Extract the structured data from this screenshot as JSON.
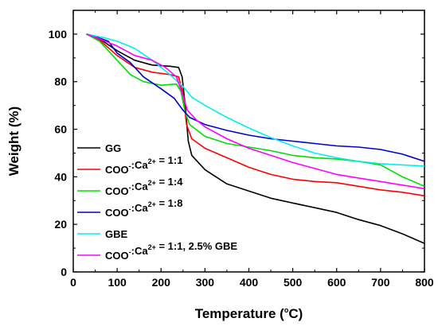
{
  "chart_data": {
    "type": "line",
    "title": "",
    "xlabel": {
      "prefix": "Temperature (",
      "sup": "o",
      "suffix": "C)"
    },
    "ylabel": "Weight (%)",
    "xlim": [
      0,
      800
    ],
    "ylim": [
      0,
      110
    ],
    "xticks": [
      0,
      100,
      200,
      300,
      400,
      500,
      600,
      700,
      800
    ],
    "yticks": [
      0,
      20,
      40,
      60,
      80,
      100
    ],
    "grid": false,
    "legend_position": "left",
    "series": [
      {
        "name": {
          "parts": [
            {
              "t": "GG"
            }
          ]
        },
        "color": "#000000",
        "points": [
          [
            30,
            100
          ],
          [
            60,
            98
          ],
          [
            100,
            93
          ],
          [
            140,
            89
          ],
          [
            180,
            87
          ],
          [
            220,
            86.5
          ],
          [
            240,
            86
          ],
          [
            248,
            82
          ],
          [
            255,
            70
          ],
          [
            262,
            55
          ],
          [
            270,
            49
          ],
          [
            300,
            43
          ],
          [
            350,
            37
          ],
          [
            400,
            34
          ],
          [
            450,
            31
          ],
          [
            500,
            29
          ],
          [
            550,
            27
          ],
          [
            600,
            25
          ],
          [
            650,
            22
          ],
          [
            700,
            19.5
          ],
          [
            750,
            16
          ],
          [
            800,
            12
          ]
        ]
      },
      {
        "name": {
          "parts": [
            {
              "t": "COO"
            },
            {
              "t": "-",
              "sup": true
            },
            {
              "t": ":Ca"
            },
            {
              "t": "2+",
              "sup": true
            },
            {
              "t": " = 1:1"
            }
          ]
        },
        "color": "#ff0000",
        "points": [
          [
            30,
            100
          ],
          [
            60,
            97.5
          ],
          [
            100,
            91
          ],
          [
            140,
            86
          ],
          [
            180,
            84
          ],
          [
            220,
            83
          ],
          [
            240,
            82
          ],
          [
            250,
            75
          ],
          [
            258,
            62
          ],
          [
            270,
            56
          ],
          [
            300,
            52
          ],
          [
            350,
            48
          ],
          [
            400,
            44
          ],
          [
            450,
            41
          ],
          [
            500,
            39
          ],
          [
            550,
            38
          ],
          [
            600,
            37.5
          ],
          [
            650,
            36
          ],
          [
            700,
            34.5
          ],
          [
            750,
            33.5
          ],
          [
            800,
            32
          ]
        ]
      },
      {
        "name": {
          "parts": [
            {
              "t": "COO"
            },
            {
              "t": "-",
              "sup": true
            },
            {
              "t": ":Ca"
            },
            {
              "t": "2+",
              "sup": true
            },
            {
              "t": " = 1:4"
            }
          ]
        },
        "color": "#00dd00",
        "points": [
          [
            30,
            100
          ],
          [
            60,
            97
          ],
          [
            100,
            89
          ],
          [
            130,
            83
          ],
          [
            160,
            80
          ],
          [
            200,
            78.5
          ],
          [
            235,
            79
          ],
          [
            245,
            76
          ],
          [
            255,
            67
          ],
          [
            265,
            62
          ],
          [
            300,
            57
          ],
          [
            350,
            54
          ],
          [
            400,
            52.5
          ],
          [
            450,
            51
          ],
          [
            500,
            49
          ],
          [
            550,
            48
          ],
          [
            600,
            47.5
          ],
          [
            650,
            46.5
          ],
          [
            700,
            45
          ],
          [
            750,
            40
          ],
          [
            800,
            36
          ]
        ]
      },
      {
        "name": {
          "parts": [
            {
              "t": "COO"
            },
            {
              "t": "-",
              "sup": true
            },
            {
              "t": ":Ca"
            },
            {
              "t": "2+",
              "sup": true
            },
            {
              "t": " = 1:8"
            }
          ]
        },
        "color": "#0000cc",
        "points": [
          [
            30,
            100
          ],
          [
            50,
            99
          ],
          [
            80,
            97
          ],
          [
            100,
            92
          ],
          [
            130,
            88
          ],
          [
            160,
            82
          ],
          [
            200,
            77
          ],
          [
            230,
            73
          ],
          [
            250,
            68
          ],
          [
            265,
            65
          ],
          [
            300,
            62
          ],
          [
            350,
            59.5
          ],
          [
            400,
            57.5
          ],
          [
            450,
            56
          ],
          [
            500,
            55
          ],
          [
            550,
            54
          ],
          [
            600,
            53
          ],
          [
            650,
            52.5
          ],
          [
            700,
            51.5
          ],
          [
            750,
            49.5
          ],
          [
            800,
            46.5
          ]
        ]
      },
      {
        "name": {
          "parts": [
            {
              "t": "GBE"
            }
          ]
        },
        "color": "#00eeee",
        "points": [
          [
            30,
            100
          ],
          [
            70,
            98.5
          ],
          [
            100,
            97
          ],
          [
            140,
            94
          ],
          [
            180,
            89
          ],
          [
            220,
            83
          ],
          [
            250,
            78
          ],
          [
            270,
            73.5
          ],
          [
            300,
            70
          ],
          [
            350,
            65
          ],
          [
            400,
            60.5
          ],
          [
            450,
            56.5
          ],
          [
            500,
            53
          ],
          [
            550,
            50
          ],
          [
            600,
            48
          ],
          [
            650,
            46.5
          ],
          [
            700,
            45.5
          ],
          [
            750,
            45
          ],
          [
            800,
            44.5
          ]
        ]
      },
      {
        "name": {
          "parts": [
            {
              "t": "COO"
            },
            {
              "t": "-",
              "sup": true
            },
            {
              "t": ":Ca"
            },
            {
              "t": "2+",
              "sup": true
            },
            {
              "t": " = 1:1, 2.5% GBE"
            }
          ]
        },
        "color": "#ff00ff",
        "points": [
          [
            30,
            100
          ],
          [
            60,
            98
          ],
          [
            100,
            95
          ],
          [
            140,
            91
          ],
          [
            180,
            89
          ],
          [
            210,
            86
          ],
          [
            235,
            82
          ],
          [
            250,
            74
          ],
          [
            260,
            68
          ],
          [
            280,
            64
          ],
          [
            300,
            61
          ],
          [
            350,
            56
          ],
          [
            400,
            52
          ],
          [
            450,
            49
          ],
          [
            500,
            46
          ],
          [
            550,
            43.5
          ],
          [
            600,
            41
          ],
          [
            650,
            39.5
          ],
          [
            700,
            38
          ],
          [
            750,
            36.5
          ],
          [
            800,
            35
          ]
        ]
      }
    ]
  }
}
